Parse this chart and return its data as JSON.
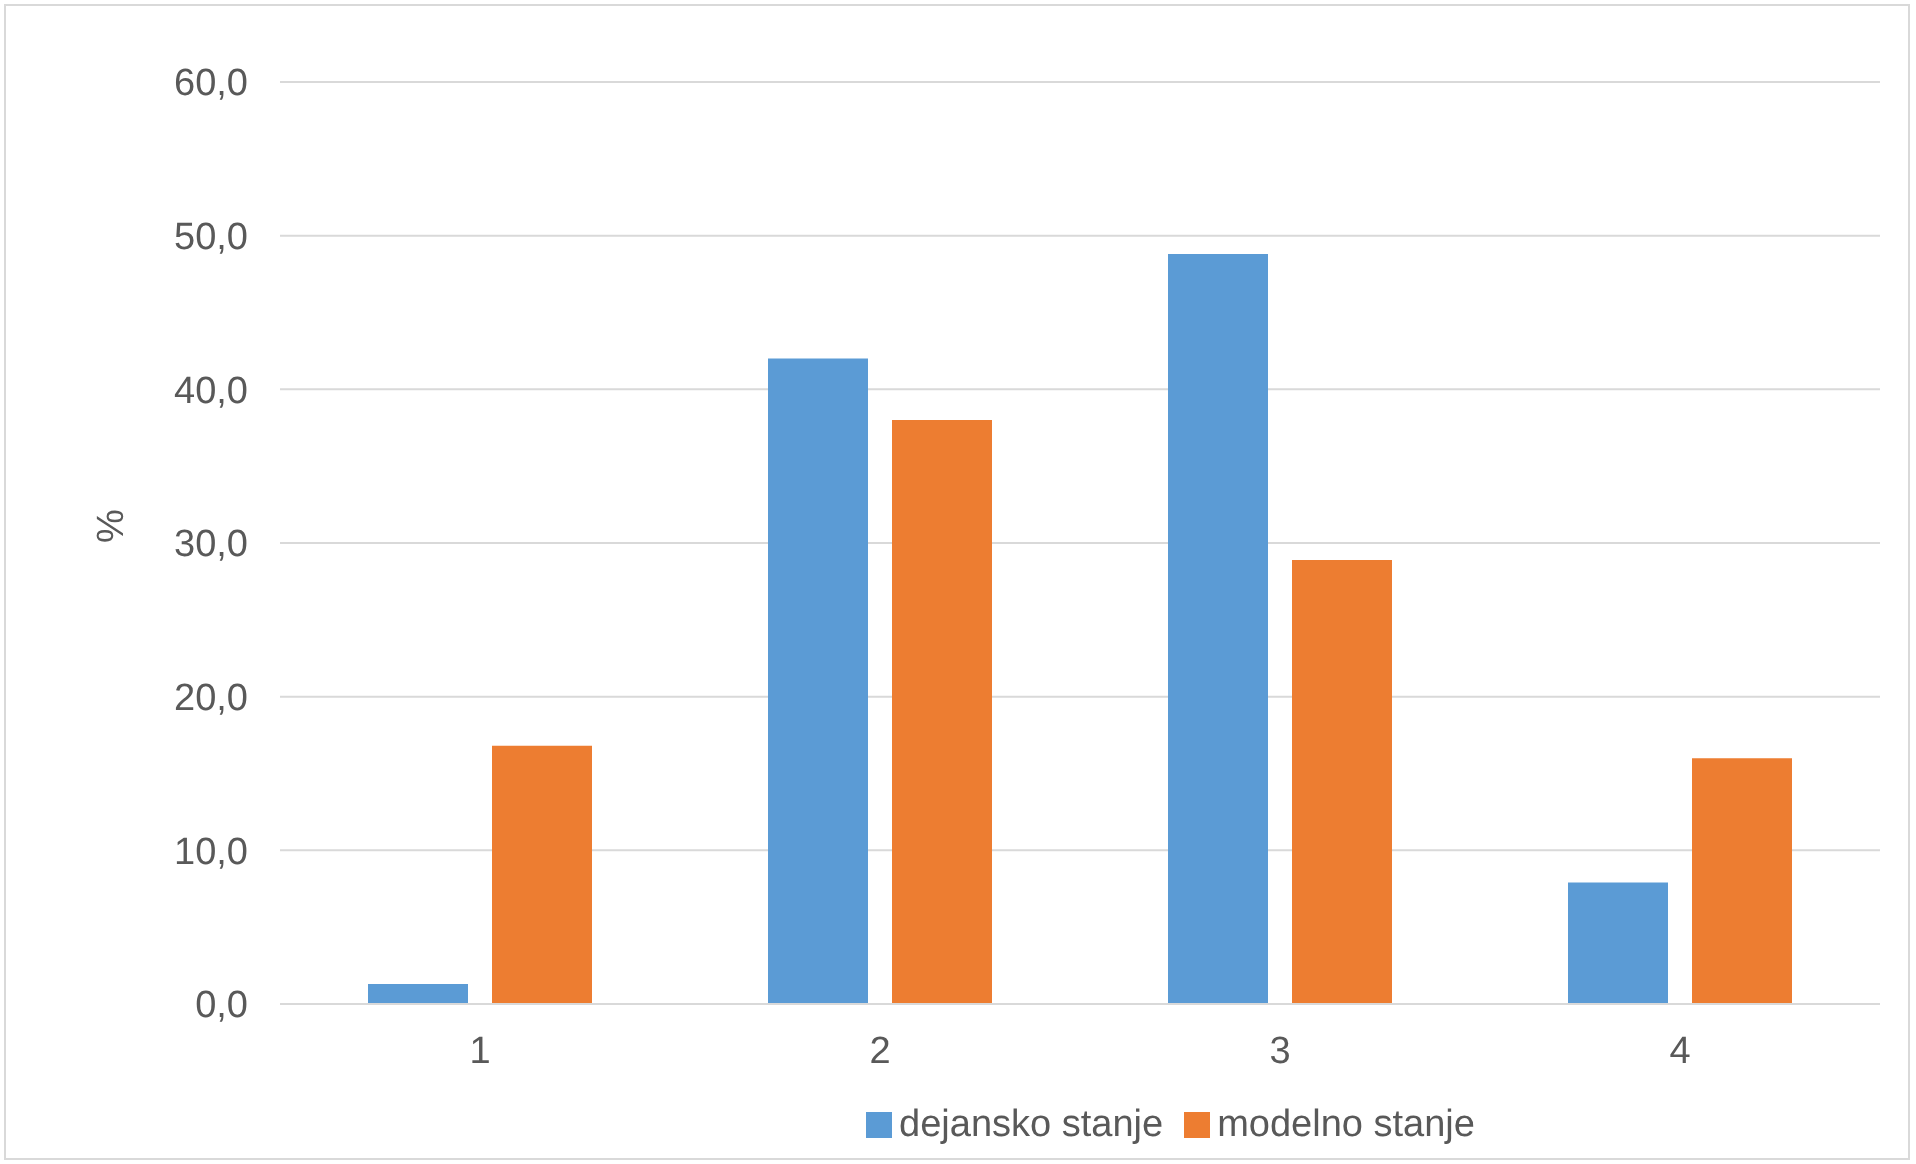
{
  "chart_data": {
    "type": "bar",
    "ylabel": "%",
    "categories": [
      "1",
      "2",
      "3",
      "4"
    ],
    "series": [
      {
        "name": "dejansko stanje",
        "color": "#5b9bd5",
        "values": [
          1.3,
          42.0,
          48.8,
          7.9
        ]
      },
      {
        "name": "modelno stanje",
        "color": "#ed7d31",
        "values": [
          16.8,
          38.0,
          28.9,
          16.0
        ]
      }
    ],
    "ylim": [
      0,
      60
    ],
    "yticks": [
      {
        "value": 0,
        "label": "0,0"
      },
      {
        "value": 10,
        "label": "10,0"
      },
      {
        "value": 20,
        "label": "20,0"
      },
      {
        "value": 30,
        "label": "30,0"
      },
      {
        "value": 40,
        "label": "40,0"
      },
      {
        "value": 50,
        "label": "50,0"
      },
      {
        "value": 60,
        "label": "60,0"
      }
    ],
    "grid": "y",
    "legend": "bottom"
  }
}
